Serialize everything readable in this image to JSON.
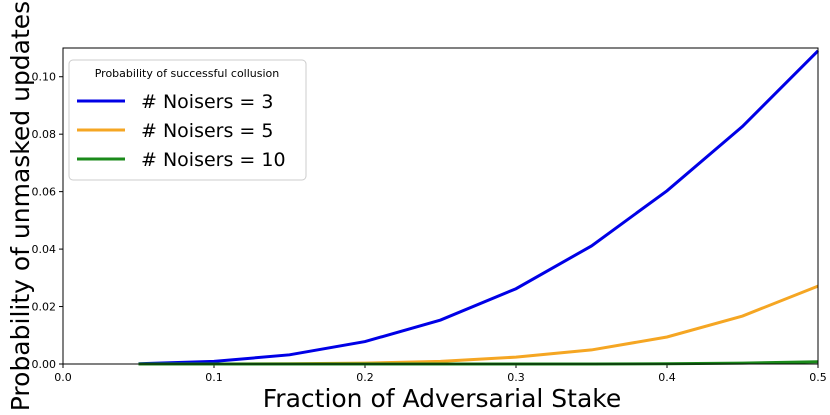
{
  "chart_data": {
    "type": "line",
    "x_label": "Fraction of Adversarial Stake",
    "y_label": "Probability of unmasked updates",
    "legend_title": "Probability of successful collusion",
    "legend_position": "upper left",
    "x": [
      0.05,
      0.1,
      0.15,
      0.2,
      0.25,
      0.3,
      0.35,
      0.4,
      0.45,
      0.5
    ],
    "series": [
      {
        "name": "# Noisers = 3",
        "color": "#0000e6",
        "values": [
          0.0001,
          0.0009,
          0.0032,
          0.0078,
          0.0153,
          0.0262,
          0.0411,
          0.0603,
          0.0827,
          0.109
        ]
      },
      {
        "name": "# Noisers = 5",
        "color": "#f5a623",
        "values": [
          0,
          0,
          0.0001,
          0.0003,
          0.0009,
          0.0024,
          0.0049,
          0.0094,
          0.0167,
          0.0271
        ]
      },
      {
        "name": "# Noisers = 10",
        "color": "#1a8a1a",
        "values": [
          0,
          0,
          0,
          0,
          0,
          0,
          0,
          0.0001,
          0.0003,
          0.0008
        ]
      }
    ],
    "xlim": [
      0,
      0.5
    ],
    "ylim": [
      0,
      0.11
    ],
    "xticks": [
      {
        "value": 0,
        "label": "0.0"
      },
      0.1,
      0.2,
      0.3,
      0.4,
      0.5
    ],
    "yticks": [
      {
        "value": 0,
        "label": "0.00"
      },
      {
        "value": 0.02,
        "label": "0.02"
      },
      {
        "value": 0.04,
        "label": "0.04"
      },
      {
        "value": 0.06,
        "label": "0.06"
      },
      {
        "value": 0.08,
        "label": "0.08"
      },
      {
        "value": 0.1,
        "label": "0.10"
      }
    ]
  }
}
